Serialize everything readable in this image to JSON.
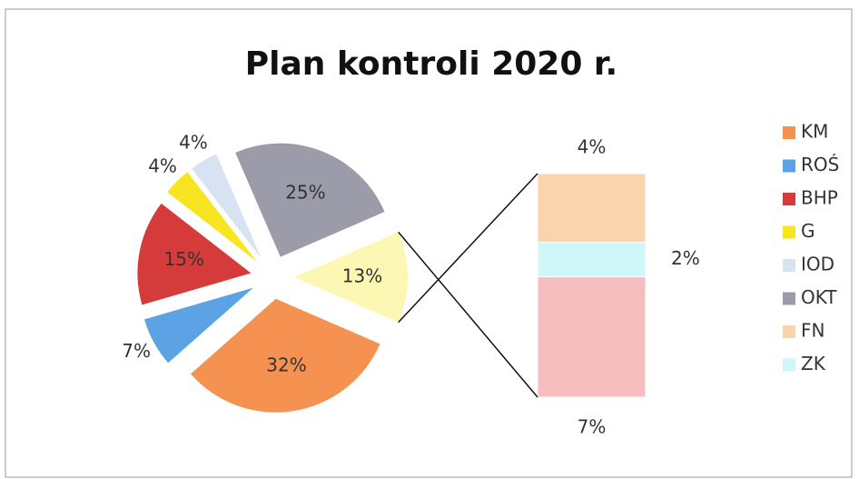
{
  "chart_data": {
    "type": "pie-of-bar",
    "title": "Plan kontroli 2020 r.",
    "pie": {
      "categories": [
        "KM",
        "ROŚ",
        "BHP",
        "G",
        "IOD",
        "OKT",
        null
      ],
      "values": [
        32,
        7,
        15,
        4,
        4,
        25,
        13
      ],
      "value_labels": [
        "32%",
        "7%",
        "15%",
        "4%",
        "4%",
        "25%",
        "13%"
      ],
      "colors": [
        "#f59252",
        "#5ca3e6",
        "#d63b3b",
        "#f6e520",
        "#d7e3f3",
        "#9b9baa",
        "#fcf8b4"
      ]
    },
    "bar": {
      "categories": [
        "FN",
        "ZK",
        null
      ],
      "values": [
        4,
        2,
        7
      ],
      "value_labels": [
        "4%",
        "2%",
        "7%"
      ],
      "colors": [
        "#f9d4ad",
        "#cff6f9",
        "#f6bebe"
      ]
    },
    "legend": "right"
  }
}
